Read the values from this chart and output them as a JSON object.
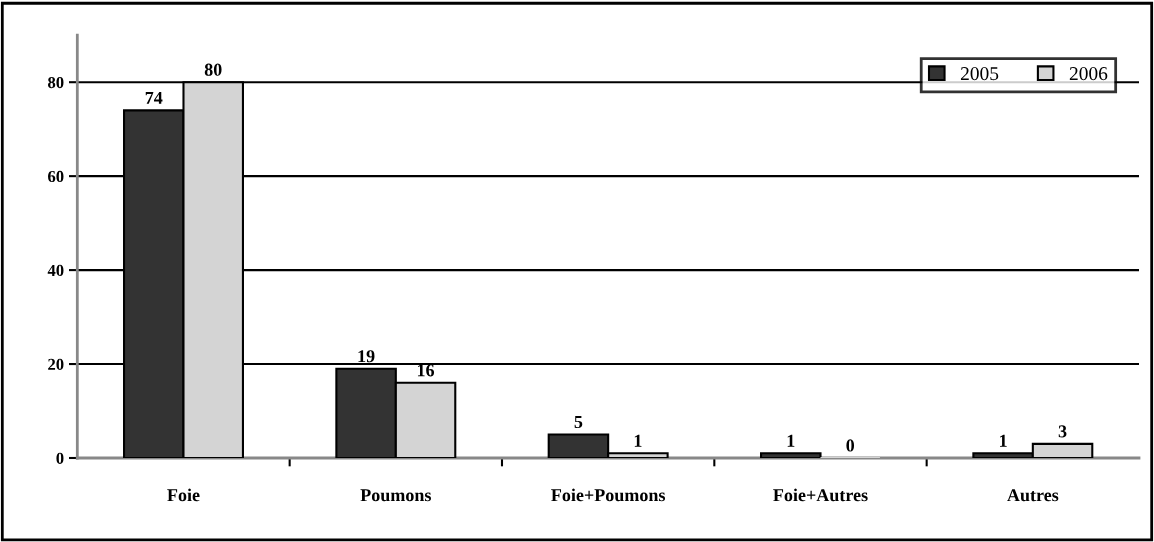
{
  "chart_data": {
    "type": "bar",
    "categories": [
      "Foie",
      "Poumons",
      "Foie+Poumons",
      "Foie+Autres",
      "Autres"
    ],
    "series": [
      {
        "name": "2005",
        "color": "#333333",
        "values": [
          74,
          19,
          5,
          1,
          1
        ]
      },
      {
        "name": "2006",
        "color": "#d4d4d4",
        "values": [
          80,
          16,
          1,
          0,
          3
        ]
      }
    ],
    "ylim": [
      0,
      90
    ],
    "yticks": [
      0,
      20,
      40,
      60,
      80
    ],
    "grid": "y",
    "legend": "top right",
    "data_labels": true
  }
}
